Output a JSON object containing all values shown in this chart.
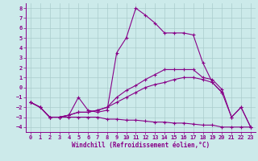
{
  "xlabel": "Windchill (Refroidissement éolien,°C)",
  "background_color": "#cceaea",
  "grid_color": "#aacccc",
  "line_color": "#880088",
  "xlim": [
    -0.5,
    23.5
  ],
  "ylim": [
    -4.5,
    8.5
  ],
  "xticks": [
    0,
    1,
    2,
    3,
    4,
    5,
    6,
    7,
    8,
    9,
    10,
    11,
    12,
    13,
    14,
    15,
    16,
    17,
    18,
    19,
    20,
    21,
    22,
    23
  ],
  "yticks": [
    -4,
    -3,
    -2,
    -1,
    0,
    1,
    2,
    3,
    4,
    5,
    6,
    7,
    8
  ],
  "lines": [
    {
      "x": [
        0,
        1,
        2,
        3,
        4,
        5,
        6,
        7,
        8,
        9,
        10,
        11,
        12,
        13,
        14,
        15,
        16,
        17,
        18,
        19,
        20
      ],
      "y": [
        -1.5,
        -2,
        -3,
        -3,
        -2.8,
        -1.0,
        -2.3,
        -2.5,
        -2.3,
        3.5,
        5.0,
        8.0,
        7.3,
        6.5,
        5.5,
        5.5,
        5.5,
        5.3,
        2.5,
        0.5,
        -0.5
      ]
    },
    {
      "x": [
        0,
        1,
        2,
        3,
        4,
        5,
        6,
        7,
        8,
        9,
        10,
        11,
        12,
        13,
        14,
        15,
        16,
        17,
        18,
        19,
        20,
        21,
        22,
        23
      ],
      "y": [
        -1.5,
        -2.0,
        -3.0,
        -3.0,
        -3.0,
        -3.0,
        -3.0,
        -3.0,
        -3.2,
        -3.2,
        -3.3,
        -3.3,
        -3.4,
        -3.5,
        -3.5,
        -3.6,
        -3.6,
        -3.7,
        -3.8,
        -3.8,
        -4.0,
        -4.0,
        -4.0,
        -4.0
      ]
    },
    {
      "x": [
        0,
        1,
        2,
        3,
        4,
        5,
        6,
        7,
        8,
        9,
        10,
        11,
        12,
        13,
        14,
        15,
        16,
        17,
        18,
        19,
        20,
        21,
        22,
        23
      ],
      "y": [
        -1.5,
        -2.0,
        -3.0,
        -3.0,
        -2.8,
        -2.5,
        -2.5,
        -2.3,
        -2.0,
        -1.5,
        -1.0,
        -0.5,
        0.0,
        0.3,
        0.5,
        0.8,
        1.0,
        1.0,
        0.8,
        0.5,
        -0.5,
        -3.0,
        -2.0,
        -4.0
      ]
    },
    {
      "x": [
        0,
        1,
        2,
        3,
        4,
        5,
        6,
        7,
        8,
        9,
        10,
        11,
        12,
        13,
        14,
        15,
        16,
        17,
        18,
        19,
        20,
        21,
        22,
        23
      ],
      "y": [
        -1.5,
        -2.0,
        -3.0,
        -3.0,
        -2.8,
        -2.5,
        -2.5,
        -2.3,
        -2.0,
        -1.0,
        -0.3,
        0.2,
        0.8,
        1.3,
        1.8,
        1.8,
        1.8,
        1.8,
        1.0,
        0.8,
        -0.2,
        -3.0,
        -2.0,
        -4.0
      ]
    }
  ]
}
